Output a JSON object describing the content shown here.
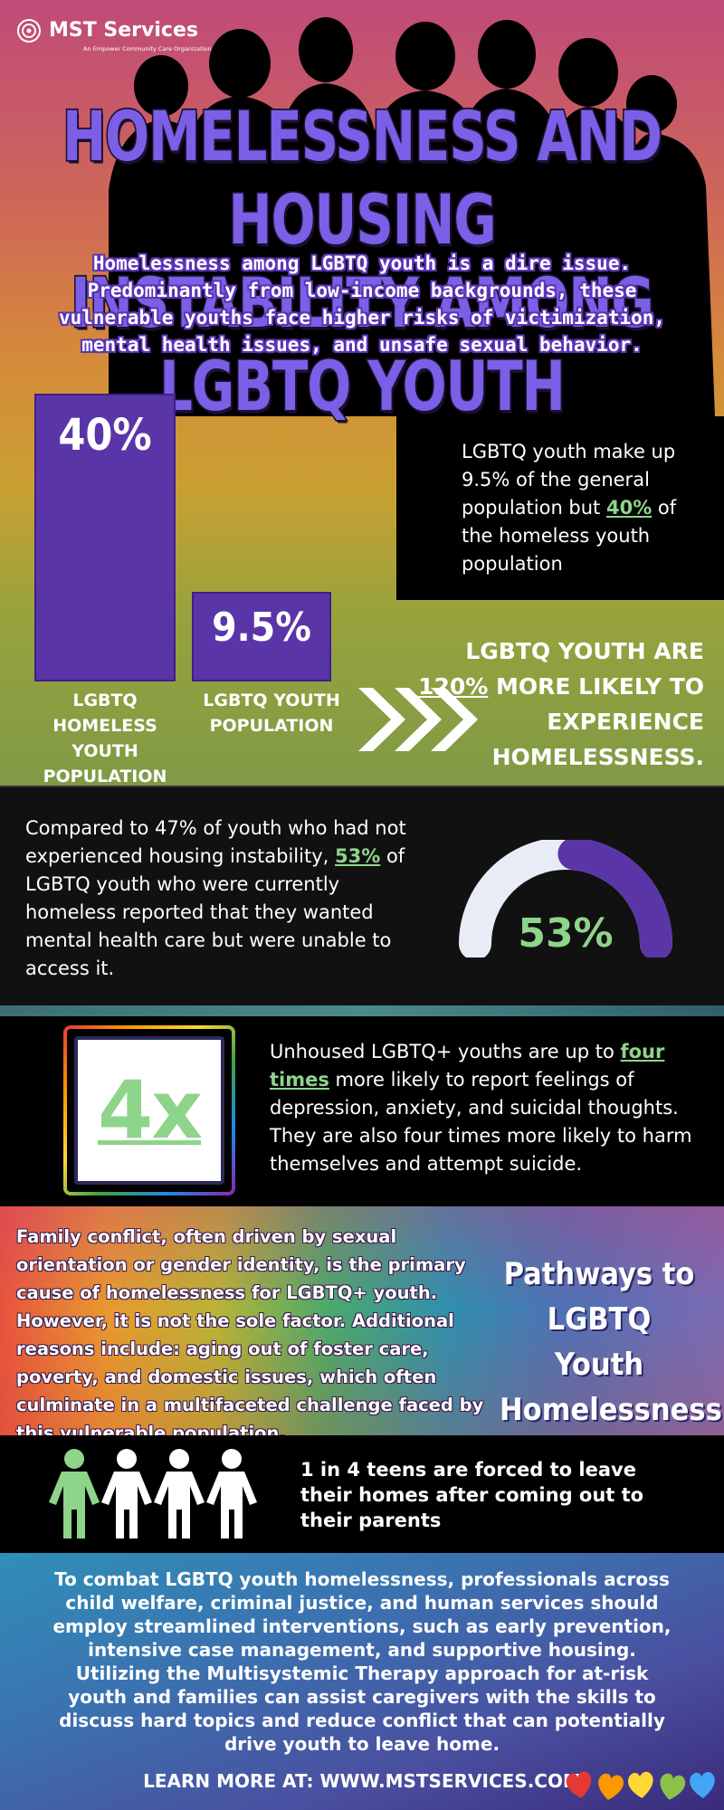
{
  "brand": {
    "name": "MST Services",
    "tagline": "An Empower Community Care Organization"
  },
  "hero": {
    "title_line1": "HOMELESSNESS AND HOUSING",
    "title_line2": "INSTABILITY AMONG LGBTQ YOUTH",
    "intro": "Homelessness among LGBTQ youth is a dire issue. Predominantly from low-income backgrounds, these vulnerable youths face higher risks of victimization, mental health issues, and unsafe sexual behavior."
  },
  "chart_data": {
    "type": "bar",
    "categories": [
      "LGBTQ HOMELESS YOUTH POPULATION",
      "LGBTQ YOUTH POPULATION"
    ],
    "values": [
      40,
      9.5
    ],
    "data_labels": [
      "40%",
      "9.5%"
    ],
    "title": "",
    "xlabel": "",
    "ylabel": "",
    "ylim": [
      0,
      40
    ]
  },
  "population_box": {
    "text_before": "LGBTQ youth make up 9.5% of the general population but ",
    "highlight": "40%",
    "text_after": " of the homeless youth population"
  },
  "likely": {
    "prefix": "LGBTQ YOUTH ARE ",
    "highlight": "120%",
    "suffix": " MORE LIKELY TO EXPERIENCE HOMELESSNESS."
  },
  "mental_health": {
    "text_before": "Compared to 47% of youth who had not experienced housing instability, ",
    "highlight": "53%",
    "text_after": " of LGBTQ youth who were currently homeless reported that they wanted mental health care but were unable to access it.",
    "gauge_label": "53%",
    "gauge_fraction": 0.53
  },
  "four_times": {
    "big": "4x",
    "text_before": "Unhoused LGBTQ+ youths are up to ",
    "highlight": "four times",
    "text_after": " more likely to report feelings of depression, anxiety, and suicidal thoughts. They are also four times more likely to harm themselves and attempt suicide."
  },
  "pathways": {
    "body": "Family conflict, often driven by sexual orientation or gender identity, is the primary cause of homelessness for LGBTQ+ youth. However, it is not the sole factor. Additional reasons include: aging out of foster care, poverty, and domestic issues, which often culminate in a multifaceted challenge faced by this vulnerable population.",
    "heading": "Pathways to LGBTQ Youth Homelessness"
  },
  "coming_out": {
    "text": "1 in 4 teens are forced to leave their homes after coming out to their parents"
  },
  "combat": {
    "text": "To combat LGBTQ youth homelessness, professionals across child welfare, criminal justice, and human services should employ streamlined interventions, such as early prevention, intensive case management, and supportive housing. Utilizing the Multisystemic Therapy approach for at-risk youth and families can assist caregivers with the skills to discuss hard topics and reduce conflict that can potentially drive youth to leave home."
  },
  "footer": {
    "learn_more": "LEARN MORE AT: WWW.MSTSERVICES.COM"
  },
  "colors": {
    "purple": "#5a35a8",
    "green": "#8ed48a",
    "gauge_track": "#e8ecf5",
    "hearts": [
      "#e53935",
      "#ff9800",
      "#fdd835",
      "#8bc34a",
      "#42a5f5"
    ]
  }
}
